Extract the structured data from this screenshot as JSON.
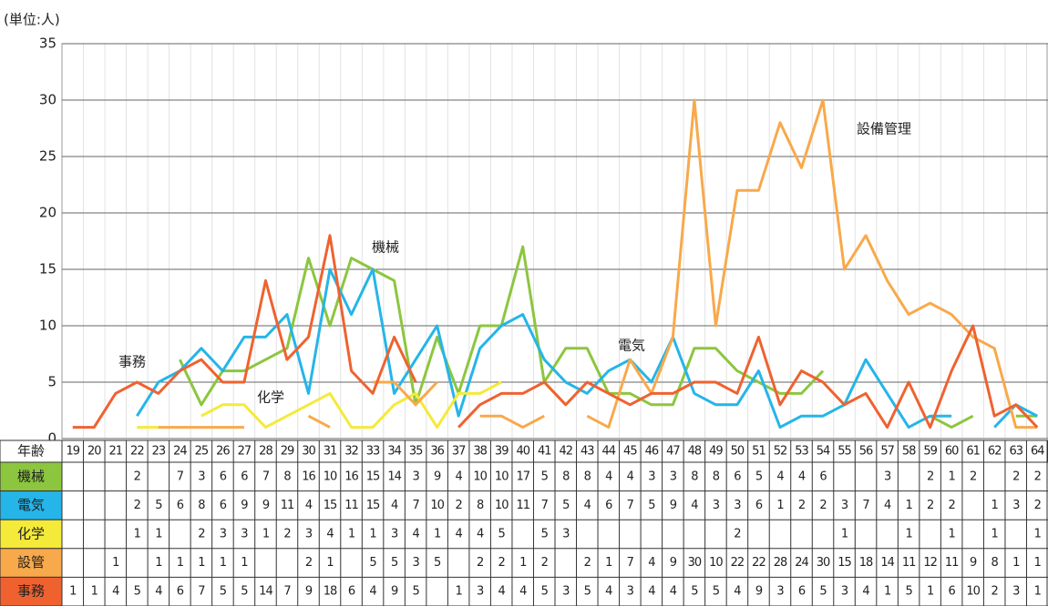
{
  "chart_data": {
    "type": "line",
    "unit_label": "(単位:人)",
    "xlabel": "年齢",
    "x": [
      19,
      20,
      21,
      22,
      23,
      24,
      25,
      26,
      27,
      28,
      29,
      30,
      31,
      32,
      33,
      34,
      35,
      36,
      37,
      38,
      39,
      40,
      41,
      42,
      43,
      44,
      45,
      46,
      47,
      48,
      49,
      50,
      51,
      52,
      53,
      54,
      55,
      56,
      57,
      58,
      59,
      60,
      61,
      62,
      63,
      64
    ],
    "ylim": [
      0,
      35
    ],
    "yticks": [
      0,
      5,
      10,
      15,
      20,
      25,
      30,
      35
    ],
    "grid": true,
    "series": [
      {
        "name": "機械",
        "color": "#8cc63f",
        "values": [
          null,
          null,
          null,
          2,
          null,
          7,
          3,
          6,
          6,
          7,
          8,
          16,
          10,
          16,
          15,
          14,
          3,
          9,
          4,
          10,
          10,
          17,
          5,
          8,
          8,
          4,
          4,
          3,
          3,
          8,
          8,
          6,
          5,
          4,
          4,
          6,
          null,
          null,
          3,
          null,
          2,
          1,
          2,
          null,
          2,
          2
        ]
      },
      {
        "name": "電気",
        "color": "#25b5e9",
        "values": [
          null,
          null,
          null,
          2,
          5,
          6,
          8,
          6,
          9,
          9,
          11,
          4,
          15,
          11,
          15,
          4,
          7,
          10,
          2,
          8,
          10,
          11,
          7,
          5,
          4,
          6,
          7,
          5,
          9,
          4,
          3,
          3,
          6,
          1,
          2,
          2,
          3,
          7,
          4,
          1,
          2,
          2,
          null,
          1,
          3,
          2
        ]
      },
      {
        "name": "化学",
        "color": "#f4ea3a",
        "values": [
          null,
          null,
          null,
          1,
          1,
          null,
          2,
          3,
          3,
          1,
          2,
          3,
          4,
          1,
          1,
          3,
          4,
          1,
          4,
          4,
          5,
          null,
          5,
          3,
          null,
          null,
          null,
          null,
          null,
          null,
          null,
          2,
          null,
          null,
          null,
          null,
          1,
          null,
          null,
          1,
          null,
          1,
          null,
          1,
          null,
          1
        ]
      },
      {
        "name": "設管",
        "color": "#f8a94b",
        "values": [
          null,
          null,
          1,
          null,
          1,
          1,
          1,
          1,
          1,
          null,
          null,
          2,
          1,
          null,
          5,
          5,
          3,
          5,
          null,
          2,
          2,
          1,
          2,
          null,
          2,
          1,
          7,
          4,
          9,
          30,
          10,
          22,
          22,
          28,
          24,
          30,
          15,
          18,
          14,
          11,
          12,
          11,
          9,
          8,
          1,
          1
        ]
      },
      {
        "name": "事務",
        "color": "#ef6230",
        "values": [
          1,
          1,
          4,
          5,
          4,
          6,
          7,
          5,
          5,
          14,
          7,
          9,
          18,
          6,
          4,
          9,
          5,
          null,
          1,
          3,
          4,
          4,
          5,
          3,
          5,
          4,
          3,
          4,
          4,
          5,
          5,
          4,
          9,
          3,
          6,
          5,
          3,
          4,
          1,
          5,
          1,
          6,
          10,
          2,
          3,
          1
        ]
      }
    ],
    "annotations": [
      "事務",
      "化学",
      "機械",
      "電気",
      "設備管理"
    ]
  }
}
